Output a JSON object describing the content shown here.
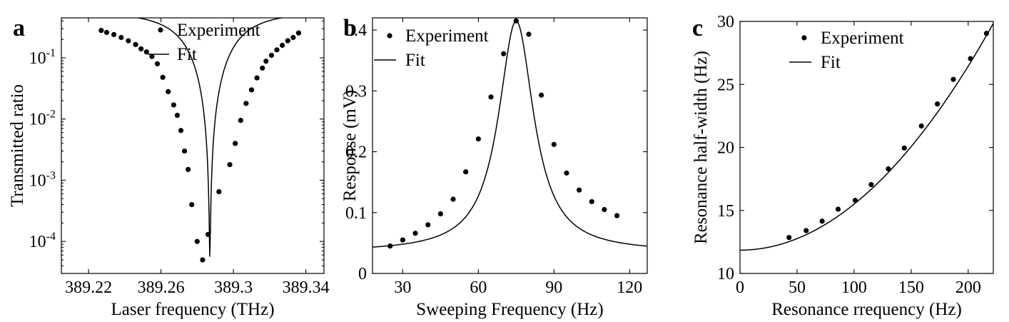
{
  "panels": [
    "a",
    "b",
    "c"
  ],
  "chart_data": [
    {
      "type": "scatter",
      "panel": "a",
      "title": "",
      "xlabel": "Laser frequency (THz)",
      "ylabel": "Transmitted ratio",
      "xlim": [
        389.205,
        389.35
      ],
      "ylim": [
        3e-05,
        0.45
      ],
      "yscale": "log",
      "xticks": [
        389.22,
        389.26,
        389.3,
        389.34
      ],
      "xtick_labels": [
        "389.22",
        "389.26",
        "389.3",
        "389.34"
      ],
      "yticks": [
        0.1,
        0.01,
        0.001,
        0.0001
      ],
      "ytick_labels": [
        {
          "base": "10",
          "exp": "-1"
        },
        {
          "base": "10",
          "exp": "-2"
        },
        {
          "base": "10",
          "exp": "-3"
        },
        {
          "base": "10",
          "exp": "-4"
        }
      ],
      "legend": {
        "placement": "top-center",
        "entries": [
          "Experiment",
          "Fit"
        ]
      },
      "grid": false,
      "fit": {
        "model": "lorentzian",
        "center": 389.287,
        "width": 0.00052,
        "floor": 5e-05,
        "peak": 0.6
      },
      "series": [
        {
          "name": "Experiment",
          "marker": "dot",
          "x": [
            389.227,
            389.23,
            389.234,
            389.238,
            389.242,
            389.246,
            389.249,
            389.252,
            389.255,
            389.258,
            389.261,
            389.264,
            389.267,
            389.269,
            389.271,
            389.273,
            389.275,
            389.277,
            389.28,
            389.283,
            389.286,
            389.292,
            389.298,
            389.301,
            389.304,
            389.307,
            389.31,
            389.313,
            389.316,
            389.318,
            389.321,
            389.324,
            389.327,
            389.33,
            389.333,
            389.336
          ],
          "y": [
            0.28,
            0.26,
            0.24,
            0.215,
            0.19,
            0.165,
            0.14,
            0.125,
            0.105,
            0.08,
            0.048,
            0.028,
            0.017,
            0.0115,
            0.0065,
            0.003,
            0.0015,
            0.0004,
            0.0001,
            5e-05,
            0.00013,
            0.00065,
            0.0018,
            0.004,
            0.0095,
            0.018,
            0.03,
            0.047,
            0.068,
            0.088,
            0.11,
            0.135,
            0.16,
            0.19,
            0.215,
            0.255
          ]
        },
        {
          "name": "Fit",
          "style": "line"
        }
      ]
    },
    {
      "type": "scatter",
      "panel": "b",
      "title": "",
      "xlabel": "Sweeping Frequency (Hz)",
      "ylabel": "Response (mV)",
      "xlim": [
        18,
        127
      ],
      "ylim": [
        0,
        0.42
      ],
      "yscale": "linear",
      "xticks": [
        30,
        60,
        90,
        120
      ],
      "xtick_labels": [
        "30",
        "60",
        "90",
        "120"
      ],
      "yticks": [
        0,
        0.1,
        0.2,
        0.3,
        0.4
      ],
      "ytick_labels": [
        "0",
        "0.1",
        "0.2",
        "0.3",
        "0.4"
      ],
      "legend": {
        "placement": "top-left",
        "entries": [
          "Experiment",
          "Fit"
        ]
      },
      "grid": false,
      "fit": {
        "model": "lorentzian",
        "center": 75,
        "width": 8.5,
        "peak": 0.38,
        "offset": 0.035
      },
      "series": [
        {
          "name": "Experiment",
          "marker": "dot",
          "x": [
            25,
            30,
            35,
            40,
            45,
            50,
            55,
            60,
            65,
            70,
            75,
            80,
            85,
            90,
            95,
            100,
            105,
            110,
            115
          ],
          "y": [
            0.045,
            0.055,
            0.066,
            0.08,
            0.098,
            0.122,
            0.167,
            0.221,
            0.29,
            0.361,
            0.415,
            0.393,
            0.293,
            0.212,
            0.165,
            0.137,
            0.118,
            0.105,
            0.095
          ]
        },
        {
          "name": "Fit",
          "style": "line"
        }
      ]
    },
    {
      "type": "scatter",
      "panel": "c",
      "title": "",
      "xlabel": "Resonance rrequency (Hz)",
      "ylabel": "Resonance half-width (Hz)",
      "xlim": [
        0,
        222
      ],
      "ylim": [
        10,
        30
      ],
      "yscale": "linear",
      "xticks": [
        0,
        50,
        100,
        150,
        200
      ],
      "xtick_labels": [
        "0",
        "50",
        "100",
        "150",
        "200"
      ],
      "yticks": [
        10,
        15,
        20,
        25,
        30
      ],
      "ytick_labels": [
        "10",
        "15",
        "20",
        "25",
        "30"
      ],
      "legend": {
        "placement": "top-left",
        "entries": [
          "Experiment",
          "Fit"
        ]
      },
      "grid": false,
      "fit": {
        "model": "quadratic",
        "a0": 11.85,
        "a2": 0.000365
      },
      "series": [
        {
          "name": "Experiment",
          "marker": "dot",
          "x": [
            43,
            58,
            72,
            86,
            101,
            115,
            130,
            144,
            159,
            173,
            187,
            202,
            216
          ],
          "y": [
            12.85,
            13.4,
            14.15,
            15.1,
            15.8,
            17.05,
            18.3,
            19.95,
            21.7,
            23.45,
            25.4,
            27.05,
            29.05
          ]
        },
        {
          "name": "Fit",
          "style": "line"
        }
      ]
    }
  ]
}
